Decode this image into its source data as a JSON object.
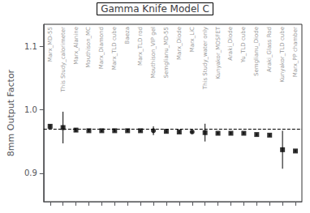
{
  "chart_data": {
    "type": "scatter",
    "title": "Gamma Knife Model C",
    "ylabel": "8mm Output Factor",
    "categories": [
      "Marx_MD-55",
      "This Study_calorimeter",
      "Marx_Alanine",
      "Mouthison_MC",
      "Marx_Diamond",
      "Marx_TLD cube",
      "Baeza",
      "Marx_TLD rod",
      "Mouthison_VIP gel",
      "Semglianu_MD-55",
      "Marx_Diode",
      "Marx_LiC",
      "This Study_water only",
      "Kunyakor_MOSFET",
      "Araki_Diode",
      "Yu_TLD cube",
      "Semglianu_Diode",
      "Araki_Glass Rod",
      "Kunyakor_TLD cube",
      "Marx_PP chamber"
    ],
    "series": [
      {
        "marker": "square",
        "color": "black",
        "values": [
          0.974,
          0.972,
          0.968,
          0.967,
          0.967,
          0.967,
          0.967,
          0.967,
          null,
          0.966,
          0.965,
          null,
          0.964,
          0.963,
          0.963,
          0.963,
          0.961,
          0.96,
          0.937,
          0.935
        ],
        "yerr_low": [
          0.003,
          0.025,
          0.003,
          0.002,
          0.002,
          0.002,
          0.002,
          0.002,
          null,
          0.002,
          0.002,
          null,
          0.014,
          0.002,
          0.002,
          0.002,
          0.002,
          0.002,
          0.03,
          0.002
        ],
        "yerr_high": [
          0.003,
          0.025,
          0.003,
          0.002,
          0.002,
          0.002,
          0.002,
          0.002,
          null,
          0.002,
          0.002,
          null,
          0.014,
          0.002,
          0.002,
          0.002,
          0.002,
          0.002,
          0.03,
          0.002
        ]
      },
      {
        "marker": "circle",
        "color": "black",
        "values": [
          null,
          null,
          null,
          null,
          null,
          null,
          null,
          null,
          0.967,
          null,
          null,
          0.965,
          null,
          null,
          null,
          null,
          null,
          null,
          null,
          null
        ],
        "yerr_low": [
          null,
          null,
          null,
          null,
          null,
          null,
          null,
          null,
          0.007,
          null,
          null,
          0.002,
          null,
          null,
          null,
          null,
          null,
          null,
          null,
          null
        ],
        "yerr_high": [
          null,
          null,
          null,
          null,
          null,
          null,
          null,
          null,
          0.007,
          null,
          null,
          0.002,
          null,
          null,
          null,
          null,
          null,
          null,
          null,
          null
        ]
      }
    ],
    "hlines": [
      {
        "value": 0.969,
        "line_style": "dashed",
        "color": "black"
      }
    ],
    "ylim": [
      0.855,
      1.135
    ],
    "yticks": [
      0.9,
      {
        "value": 1,
        "label": "1.0"
      },
      1.1
    ],
    "grid": false,
    "tick_labels": "y"
  }
}
